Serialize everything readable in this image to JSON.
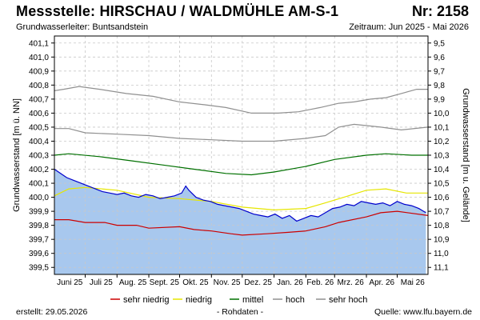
{
  "header": {
    "title": "Messstelle: HIRSCHAU / WALDMÜHLE  AM-S-1",
    "number": "Nr: 2158",
    "aquifer": "Grundwasserleiter: Buntsandstein",
    "period": "Zeitraum: Jun 2025 - Mai 2026"
  },
  "footer": {
    "created": "erstellt:  29.05.2026",
    "note": "- Rohdaten -",
    "source": "Quelle: www.lfu.bayern.de"
  },
  "colors": {
    "fill": "#a8c8ee",
    "measured": "#0000cc",
    "sehr_niedrig": "#cc0000",
    "niedrig": "#e6e600",
    "mittel": "#007000",
    "hoch": "#909090",
    "sehr_hoch": "#909090",
    "grid": "#c8c8c8"
  },
  "chart_data": {
    "type": "line",
    "ylabel_left": "Grundwasserstand [m ü. NN]",
    "ylabel_right": "Grundwasserstand [m u. Gelände]",
    "ylim": [
      399.45,
      401.15
    ],
    "y2lim": [
      11.15,
      9.45
    ],
    "left_ticks": [
      "401,1",
      "401,0",
      "400,9",
      "400,8",
      "400,7",
      "400,6",
      "400,5",
      "400,4",
      "400,3",
      "400,2",
      "400,1",
      "400,0",
      "399,9",
      "399,8",
      "399,7",
      "399,6",
      "399,5"
    ],
    "right_ticks": [
      "9,5",
      "9,6",
      "9,7",
      "9,8",
      "9,9",
      "10,0",
      "10,1",
      "10,2",
      "10,3",
      "10,4",
      "10,5",
      "10,6",
      "10,7",
      "10,8",
      "10,9",
      "11,0",
      "11,1"
    ],
    "x_ticks": [
      "Juni 25",
      "Juli 25",
      "Aug. 25",
      "Sept. 25",
      "Okt. 25",
      "Nov. 25",
      "Dez. 25",
      "Jan. 26",
      "Feb. 26",
      "Mrz. 26",
      "Apr. 26",
      "Mai 26"
    ],
    "x_range": [
      "2025-06-01",
      "2026-05-31"
    ],
    "legend": [
      "sehr niedrig",
      "niedrig",
      "mittel",
      "hoch",
      "sehr hoch"
    ],
    "series": [
      {
        "name": "sehr hoch",
        "x": [
          "2025-06-01",
          "2025-06-10",
          "2025-06-25",
          "2025-07-15",
          "2025-08-10",
          "2025-09-05",
          "2025-10-01",
          "2025-10-25",
          "2025-11-15",
          "2025-12-10",
          "2026-01-05",
          "2026-01-25",
          "2026-02-15",
          "2026-03-05",
          "2026-03-20",
          "2026-04-05",
          "2026-04-20",
          "2026-05-05",
          "2026-05-20",
          "2026-05-31"
        ],
        "y": [
          400.76,
          400.77,
          400.79,
          400.77,
          400.74,
          400.72,
          400.68,
          400.66,
          400.64,
          400.6,
          400.6,
          400.61,
          400.64,
          400.67,
          400.68,
          400.7,
          400.71,
          400.74,
          400.77,
          400.77
        ]
      },
      {
        "name": "hoch",
        "x": [
          "2025-06-01",
          "2025-06-15",
          "2025-07-01",
          "2025-08-01",
          "2025-09-01",
          "2025-10-01",
          "2025-11-01",
          "2025-12-01",
          "2026-01-01",
          "2026-02-01",
          "2026-02-20",
          "2026-03-05",
          "2026-03-20",
          "2026-04-15",
          "2026-05-05",
          "2026-05-31"
        ],
        "y": [
          400.49,
          400.49,
          400.46,
          400.45,
          400.44,
          400.42,
          400.41,
          400.4,
          400.4,
          400.42,
          400.44,
          400.5,
          400.52,
          400.5,
          400.48,
          400.5
        ]
      },
      {
        "name": "mittel",
        "x": [
          "2025-06-01",
          "2025-06-15",
          "2025-07-15",
          "2025-08-15",
          "2025-09-15",
          "2025-10-15",
          "2025-11-15",
          "2025-12-10",
          "2026-01-01",
          "2026-02-01",
          "2026-03-01",
          "2026-04-01",
          "2026-04-20",
          "2026-05-15",
          "2026-05-31"
        ],
        "y": [
          400.3,
          400.31,
          400.29,
          400.26,
          400.23,
          400.2,
          400.17,
          400.16,
          400.18,
          400.22,
          400.27,
          400.3,
          400.31,
          400.3,
          400.3
        ]
      },
      {
        "name": "niedrig",
        "x": [
          "2025-06-01",
          "2025-06-15",
          "2025-07-01",
          "2025-08-01",
          "2025-09-01",
          "2025-10-01",
          "2025-11-01",
          "2025-12-01",
          "2026-01-01",
          "2026-02-01",
          "2026-02-20",
          "2026-03-10",
          "2026-04-01",
          "2026-04-20",
          "2026-05-10",
          "2026-05-31"
        ],
        "y": [
          400.01,
          400.06,
          400.07,
          400.05,
          400.0,
          399.99,
          399.97,
          399.93,
          399.91,
          399.92,
          399.96,
          400.0,
          400.05,
          400.06,
          400.03,
          400.03
        ]
      },
      {
        "name": "sehr niedrig",
        "x": [
          "2025-06-01",
          "2025-06-15",
          "2025-07-01",
          "2025-07-20",
          "2025-08-01",
          "2025-08-20",
          "2025-09-01",
          "2025-10-01",
          "2025-10-15",
          "2025-11-01",
          "2025-11-20",
          "2025-12-01",
          "2025-12-25",
          "2026-01-15",
          "2026-02-01",
          "2026-02-20",
          "2026-03-05",
          "2026-04-01",
          "2026-04-15",
          "2026-05-01",
          "2026-05-31"
        ],
        "y": [
          399.84,
          399.84,
          399.82,
          399.82,
          399.8,
          399.8,
          399.78,
          399.79,
          399.77,
          399.76,
          399.74,
          399.73,
          399.74,
          399.75,
          399.76,
          399.79,
          399.82,
          399.86,
          399.89,
          399.9,
          399.87
        ]
      },
      {
        "name": "Messwerte",
        "x": [
          "2025-06-01",
          "2025-06-07",
          "2025-06-13",
          "2025-06-20",
          "2025-06-27",
          "2025-07-04",
          "2025-07-11",
          "2025-07-18",
          "2025-07-25",
          "2025-08-01",
          "2025-08-08",
          "2025-08-15",
          "2025-08-22",
          "2025-08-29",
          "2025-09-05",
          "2025-09-12",
          "2025-09-19",
          "2025-09-26",
          "2025-10-03",
          "2025-10-07",
          "2025-10-10",
          "2025-10-17",
          "2025-10-24",
          "2025-10-31",
          "2025-11-07",
          "2025-11-14",
          "2025-11-21",
          "2025-11-28",
          "2025-12-05",
          "2025-12-12",
          "2025-12-19",
          "2025-12-26",
          "2026-01-02",
          "2026-01-09",
          "2026-01-16",
          "2026-01-23",
          "2026-01-30",
          "2026-02-06",
          "2026-02-13",
          "2026-02-20",
          "2026-02-27",
          "2026-03-06",
          "2026-03-13",
          "2026-03-20",
          "2026-03-27",
          "2026-04-03",
          "2026-04-10",
          "2026-04-17",
          "2026-04-24",
          "2026-05-01",
          "2026-05-08",
          "2026-05-15",
          "2026-05-22",
          "2026-05-29"
        ],
        "y": [
          400.2,
          400.17,
          400.14,
          400.12,
          400.1,
          400.08,
          400.06,
          400.04,
          400.03,
          400.02,
          400.03,
          400.01,
          400.0,
          400.02,
          400.01,
          399.99,
          400.0,
          400.01,
          400.03,
          400.08,
          400.05,
          400.0,
          399.98,
          399.97,
          399.95,
          399.94,
          399.93,
          399.92,
          399.9,
          399.88,
          399.87,
          399.86,
          399.88,
          399.85,
          399.87,
          399.83,
          399.85,
          399.87,
          399.86,
          399.89,
          399.92,
          399.93,
          399.95,
          399.94,
          399.97,
          399.96,
          399.95,
          399.96,
          399.94,
          399.97,
          399.95,
          399.94,
          399.92,
          399.89
        ]
      }
    ]
  }
}
